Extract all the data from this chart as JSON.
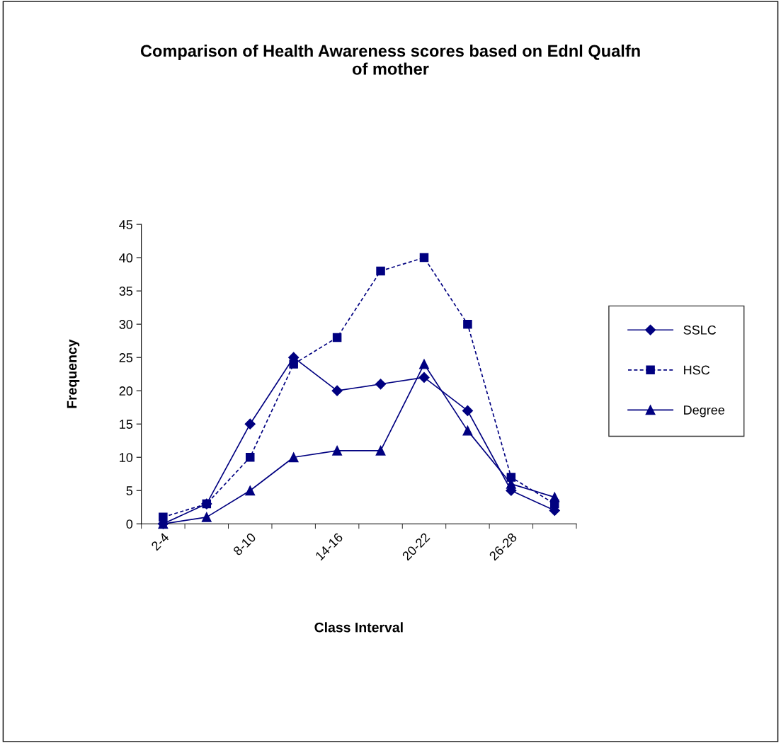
{
  "chart_data": {
    "type": "line",
    "title": "Comparison of Health Awareness scores based on Ednl Qualfn\nof mother",
    "xlabel": "Class Interval",
    "ylabel": "Frequency",
    "categories": [
      "2-4",
      null,
      "8-10",
      null,
      "14-16",
      null,
      "20-22",
      null,
      "26-28",
      null
    ],
    "series": [
      {
        "name": "SSLC",
        "color": "#000080",
        "marker": "diamond",
        "line_style": "solid",
        "values": [
          0,
          3,
          15,
          25,
          20,
          21,
          22,
          17,
          5,
          2
        ]
      },
      {
        "name": "HSC",
        "color": "#000080",
        "marker": "square",
        "line_style": "dashed",
        "values": [
          1,
          3,
          10,
          24,
          28,
          38,
          40,
          30,
          7,
          3
        ]
      },
      {
        "name": "Degree",
        "color": "#000080",
        "marker": "triangle",
        "line_style": "solid",
        "values": [
          0,
          1,
          5,
          10,
          11,
          11,
          24,
          14,
          6,
          4
        ]
      }
    ],
    "ylim": [
      0,
      45
    ],
    "yticks": [
      0,
      5,
      10,
      15,
      20,
      25,
      30,
      35,
      40,
      45
    ],
    "grid": false,
    "legend": "right"
  }
}
